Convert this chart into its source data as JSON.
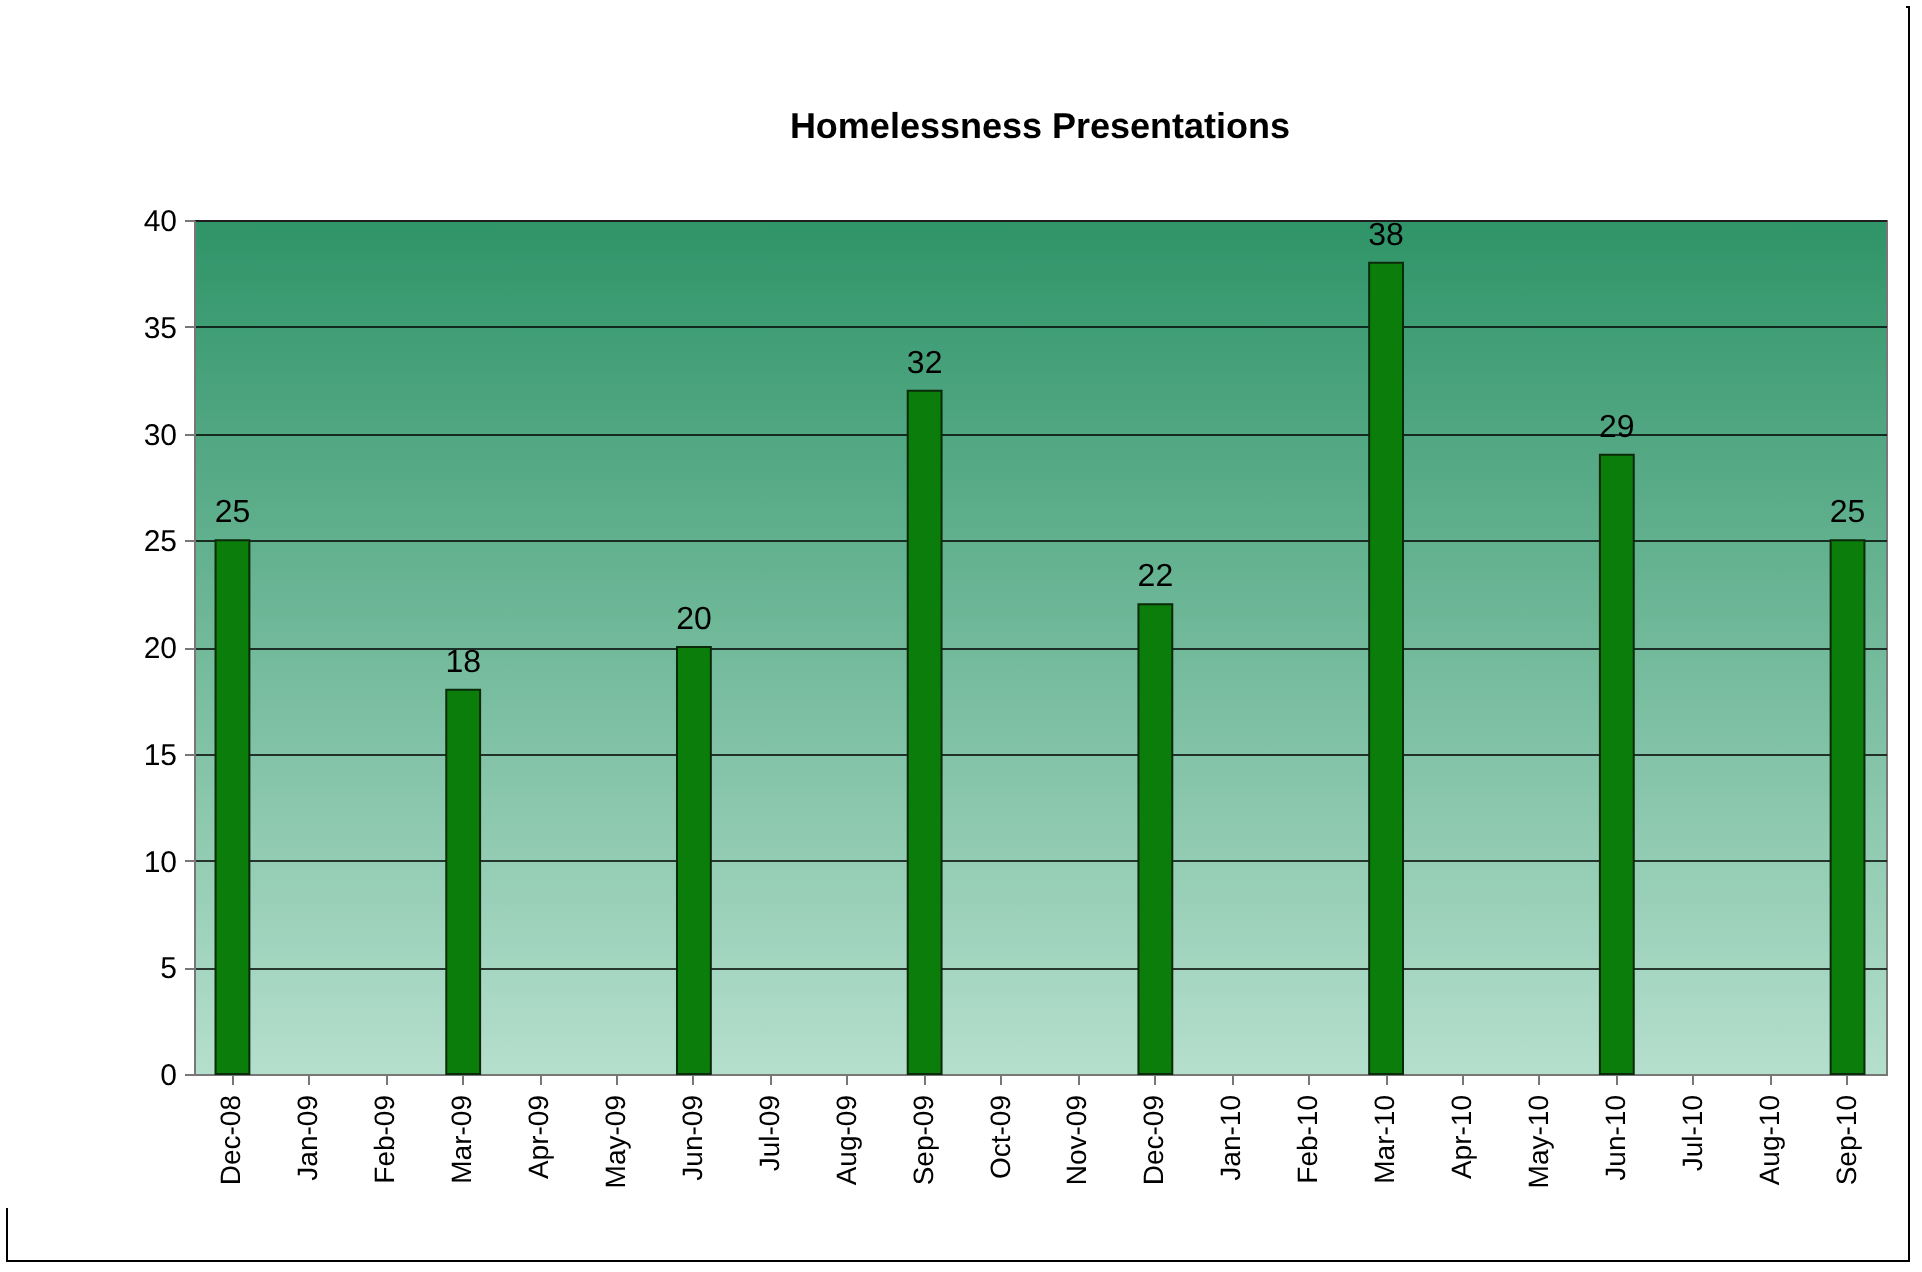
{
  "chart_data": {
    "type": "bar",
    "title": "Homelessness Presentations",
    "categories": [
      "Dec-08",
      "Jan-09",
      "Feb-09",
      "Mar-09",
      "Apr-09",
      "May-09",
      "Jun-09",
      "Jul-09",
      "Aug-09",
      "Sep-09",
      "Oct-09",
      "Nov-09",
      "Dec-09",
      "Jan-10",
      "Feb-10",
      "Mar-10",
      "Apr-10",
      "May-10",
      "Jun-10",
      "Jul-10",
      "Aug-10",
      "Sep-10"
    ],
    "values": [
      25,
      null,
      null,
      18,
      null,
      null,
      20,
      null,
      null,
      32,
      null,
      null,
      22,
      null,
      null,
      38,
      null,
      null,
      29,
      null,
      null,
      25
    ],
    "color": "#0b7d0b",
    "ylim": [
      0,
      40
    ],
    "yticks": [
      0,
      5,
      10,
      15,
      20,
      25,
      30,
      35,
      40
    ],
    "grid": "y",
    "data_labels": true
  }
}
